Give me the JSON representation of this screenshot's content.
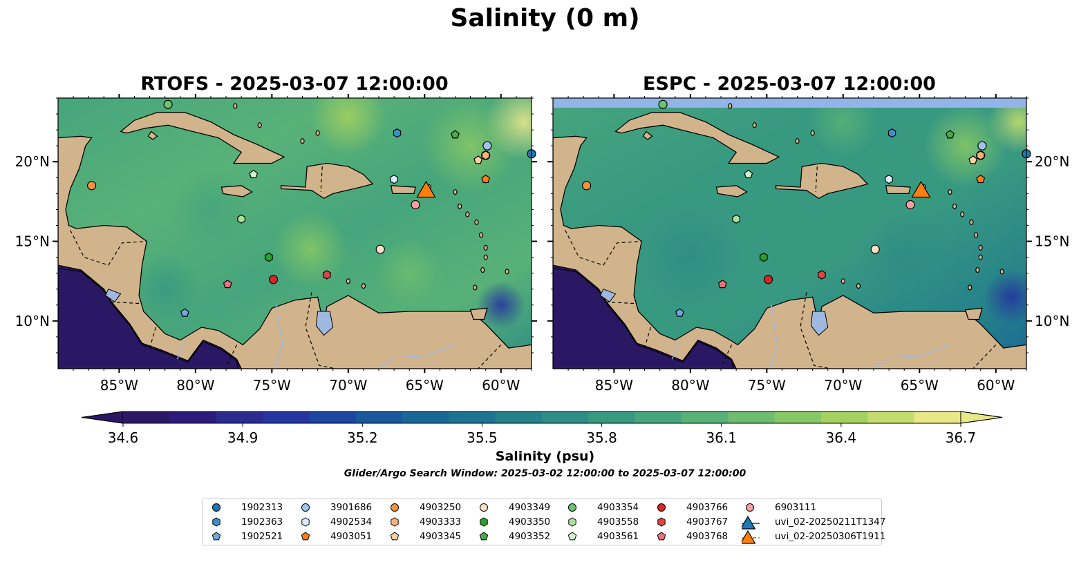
{
  "figure": {
    "title": "Salinity (0 m)",
    "panels": [
      {
        "title": "RTOFS - 2025-03-07 12:00:00"
      },
      {
        "title": "ESPC - 2025-03-07 12:00:00"
      }
    ],
    "lon_ticks": [
      "85°W",
      "80°W",
      "75°W",
      "70°W",
      "65°W",
      "60°W"
    ],
    "lat_ticks": [
      "20°N",
      "15°N",
      "10°N"
    ],
    "extent": {
      "lon": [
        -89,
        -58
      ],
      "lat": [
        7,
        24
      ]
    },
    "colorbar": {
      "label": "Salinity (psu)",
      "ticks": [
        "34.6",
        "34.9",
        "35.2",
        "35.5",
        "35.8",
        "36.1",
        "36.4",
        "36.7"
      ],
      "range": [
        34.6,
        36.7
      ],
      "colormap": [
        "#2a1865",
        "#2c1b7a",
        "#2a2a8f",
        "#2535a0",
        "#1c46a0",
        "#18589b",
        "#196795",
        "#1d7490",
        "#25818a",
        "#2e8d85",
        "#389981",
        "#46a57c",
        "#58b177",
        "#6dbc6f",
        "#86c766",
        "#a3d061",
        "#c4dc6e",
        "#e9e888"
      ]
    },
    "search_window": "Glider/Argo Search Window: 2025-03-02 12:00:00 to 2025-03-07 12:00:00",
    "colors": {
      "land": "#d2b48c",
      "sea_top_espc": "#92b4e6",
      "lakes": "#9fb8df"
    }
  },
  "chart_data": {
    "type": "scatter",
    "x_axis": "longitude",
    "y_axis": "latitude",
    "xlim": [
      -89,
      -58
    ],
    "ylim": [
      7,
      24
    ],
    "series": [
      {
        "name": "1902313",
        "marker": "circle",
        "color": "#1f77b4",
        "points": [
          [
            -57.5,
            20.5
          ]
        ]
      },
      {
        "name": "1902363",
        "marker": "hexagon",
        "color": "#3a8fd0",
        "points": [
          [
            -66.8,
            21.8
          ]
        ]
      },
      {
        "name": "1902521",
        "marker": "pentagon",
        "color": "#6aa8e0",
        "points": [
          [
            -80.7,
            10.5
          ]
        ]
      },
      {
        "name": "3901686",
        "marker": "circle",
        "color": "#9ec5ea",
        "points": [
          [
            -60.9,
            21.0
          ]
        ]
      },
      {
        "name": "4902534",
        "marker": "hexagon",
        "color": "#d8ecfb",
        "points": [
          [
            -67.0,
            18.9
          ]
        ]
      },
      {
        "name": "4903051",
        "marker": "pentagon",
        "color": "#ff7f0e",
        "points": [
          [
            -61.0,
            18.9
          ]
        ]
      },
      {
        "name": "4903250",
        "marker": "circle",
        "color": "#f5933a",
        "points": [
          [
            -86.8,
            18.5
          ],
          [
            -61.0,
            20.4
          ]
        ]
      },
      {
        "name": "4903333",
        "marker": "hexagon",
        "color": "#fdb472",
        "points": [
          [
            -61.0,
            20.4
          ]
        ]
      },
      {
        "name": "4903345",
        "marker": "pentagon",
        "color": "#fdd0a0",
        "points": [
          [
            -61.5,
            20.1
          ]
        ]
      },
      {
        "name": "4903349",
        "marker": "circle",
        "color": "#fde0c5",
        "points": [
          [
            -67.9,
            14.5
          ]
        ]
      },
      {
        "name": "4903350",
        "marker": "hexagon",
        "color": "#2ca02c",
        "points": [
          [
            -75.2,
            14.0
          ]
        ]
      },
      {
        "name": "4903352",
        "marker": "pentagon",
        "color": "#4aaa4a",
        "points": [
          [
            -63.0,
            21.7
          ]
        ]
      },
      {
        "name": "4903354",
        "marker": "circle",
        "color": "#6cc46c",
        "points": [
          [
            -81.8,
            23.6
          ]
        ]
      },
      {
        "name": "4903558",
        "marker": "hexagon",
        "color": "#a8e0a0",
        "points": [
          [
            -77.0,
            16.4
          ]
        ]
      },
      {
        "name": "4903561",
        "marker": "pentagon",
        "color": "#d4f5cc",
        "points": [
          [
            -76.2,
            19.2
          ]
        ]
      },
      {
        "name": "4903766",
        "marker": "circle",
        "color": "#d62728",
        "points": [
          [
            -74.9,
            12.6
          ]
        ]
      },
      {
        "name": "4903767",
        "marker": "hexagon",
        "color": "#e04545",
        "points": [
          [
            -71.4,
            12.9
          ]
        ]
      },
      {
        "name": "4903768",
        "marker": "pentagon",
        "color": "#f07078",
        "points": [
          [
            -77.9,
            12.3
          ]
        ]
      },
      {
        "name": "6903111",
        "marker": "circle",
        "color": "#f4a0a0",
        "points": [
          [
            -65.6,
            17.3
          ]
        ]
      },
      {
        "name": "uvi_02-20250211T1347",
        "marker": "triangle",
        "color": "#1f77b4",
        "points": []
      },
      {
        "name": "uvi_02-20250306T1911",
        "marker": "triangle",
        "color": "#ff7f0e",
        "points": [
          [
            -64.9,
            18.1
          ]
        ]
      }
    ]
  },
  "legend": {
    "columns": [
      [
        "1902313",
        "1902363",
        "1902521"
      ],
      [
        "3901686",
        "4902534",
        "4903051"
      ],
      [
        "4903250",
        "4903333",
        "4903345"
      ],
      [
        "4903349",
        "4903350",
        "4903352"
      ],
      [
        "4903354",
        "4903558",
        "4903561"
      ],
      [
        "4903766",
        "4903767",
        "4903768"
      ],
      [
        "6903111",
        "uvi_02-20250211T1347",
        "uvi_02-20250306T1911"
      ]
    ]
  }
}
